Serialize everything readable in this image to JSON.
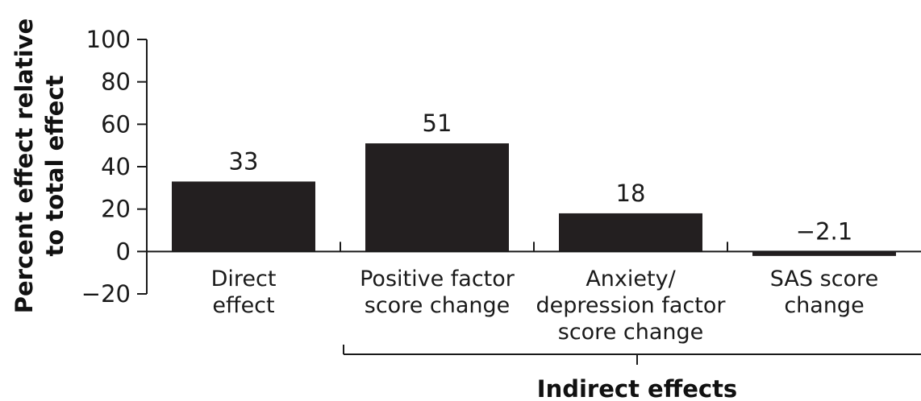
{
  "chart_data": {
    "type": "bar",
    "ylabel_lines": [
      "Percent effect relative",
      "to total effect"
    ],
    "ylim": [
      -20,
      100
    ],
    "yticks": [
      "100",
      "80",
      "60",
      "40",
      "20",
      "0",
      "−20"
    ],
    "ytick_values": [
      100,
      80,
      60,
      40,
      20,
      0,
      -20
    ],
    "categories": [
      [
        "Direct",
        "effect"
      ],
      [
        "Positive factor",
        "score change"
      ],
      [
        "Anxiety/",
        "depression factor",
        "score change"
      ],
      [
        "SAS score",
        "change"
      ]
    ],
    "values": [
      33,
      51,
      18,
      -2.1
    ],
    "data_labels": [
      "33",
      "51",
      "18",
      "−2.1"
    ],
    "bar_color": "#231f20",
    "group_label": "Indirect effects",
    "grid": false
  }
}
